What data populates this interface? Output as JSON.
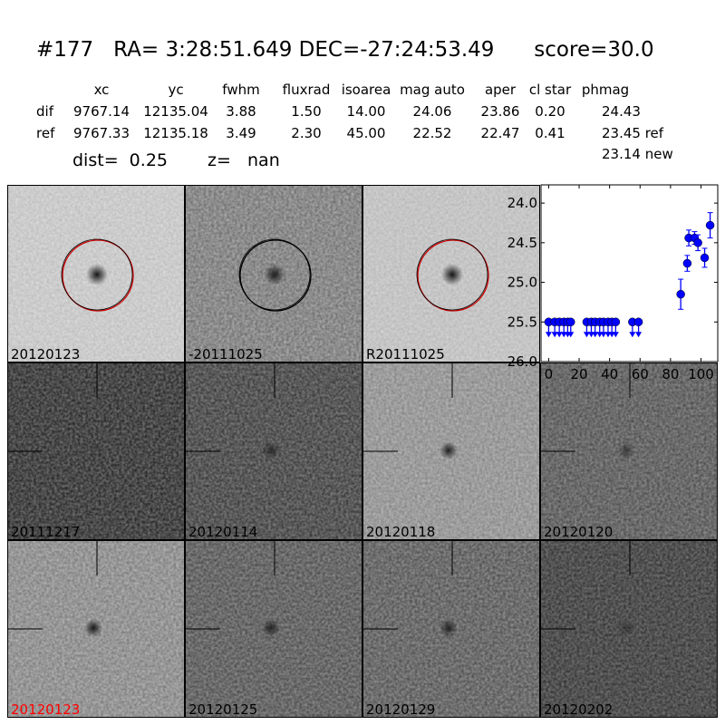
{
  "title": {
    "id": "#177",
    "ra": "RA= 3:28:51.649",
    "dec": "DEC=-27:24:53.49",
    "score": "score=30.0"
  },
  "table": {
    "headers": [
      "xc",
      "yc",
      "fwhm",
      "fluxrad",
      "isoarea",
      "mag auto",
      "aper",
      "cl star",
      "phmag"
    ],
    "rows": [
      {
        "label": "dif",
        "values": [
          "9767.14",
          "12135.04",
          "3.88",
          "1.50",
          "14.00",
          "24.06",
          "23.86",
          "0.20",
          "24.43"
        ]
      },
      {
        "label": "ref",
        "values": [
          "9767.33",
          "12135.18",
          "3.49",
          "2.30",
          "45.00",
          "22.52",
          "22.47",
          "0.41",
          "23.45 ref"
        ]
      }
    ],
    "extra": "23.14 new",
    "dist": "dist=  0.25",
    "z": "z=   nan"
  },
  "panels": [
    {
      "label": "20120123",
      "shade": 0.88,
      "star": 0.9,
      "circle": "#cc0000",
      "noise": 0.15
    },
    {
      "label": "-20111025",
      "shade": 0.72,
      "star": 0.8,
      "circle": "#000000",
      "noise": 0.4
    },
    {
      "label": "R20111025",
      "shade": 0.85,
      "star": 0.9,
      "circle": "#cc0000",
      "noise": 0.15
    },
    null,
    {
      "label": "20111217",
      "shade": 0.5,
      "star": 0.1,
      "noise": 0.7
    },
    {
      "label": "20120114",
      "shade": 0.55,
      "star": 0.5,
      "noise": 0.6
    },
    {
      "label": "20120118",
      "shade": 0.75,
      "star": 0.8,
      "noise": 0.3
    },
    {
      "label": "20120120",
      "shade": 0.6,
      "star": 0.45,
      "noise": 0.5
    },
    {
      "label": "20120123",
      "shade": 0.75,
      "star": 0.85,
      "noise": 0.35,
      "label_color": "#ff0000"
    },
    {
      "label": "20120125",
      "shade": 0.6,
      "star": 0.7,
      "noise": 0.5
    },
    {
      "label": "20120129",
      "shade": 0.62,
      "star": 0.7,
      "noise": 0.5
    },
    {
      "label": "20120202",
      "shade": 0.5,
      "star": 0.3,
      "noise": 0.6
    }
  ],
  "chart_data": {
    "type": "scatter",
    "xlim": [
      -5,
      111
    ],
    "ylim": [
      26.0,
      23.77
    ],
    "y_inverted": true,
    "xticks": [
      "0",
      "20",
      "40",
      "60",
      "80",
      "100"
    ],
    "yticks": [
      "24.0",
      "24.5",
      "25.0",
      "25.5",
      "26.0"
    ],
    "color": "#0000ff",
    "upper_limits": {
      "y": 25.5,
      "x": [
        0,
        4,
        7,
        10,
        12.5,
        14.5,
        25,
        28,
        30.5,
        33.5,
        36,
        39,
        41.5,
        44,
        55,
        59
      ]
    },
    "detections": [
      {
        "x": 86.7,
        "y": 25.15,
        "err": 0.19
      },
      {
        "x": 91,
        "y": 24.76,
        "err": 0.1
      },
      {
        "x": 92,
        "y": 24.44,
        "err": 0.1
      },
      {
        "x": 95.8,
        "y": 24.44,
        "err": 0.08
      },
      {
        "x": 98,
        "y": 24.5,
        "err": 0.1
      },
      {
        "x": 102.4,
        "y": 24.69,
        "err": 0.12
      },
      {
        "x": 106,
        "y": 24.28,
        "err": 0.16
      }
    ]
  }
}
